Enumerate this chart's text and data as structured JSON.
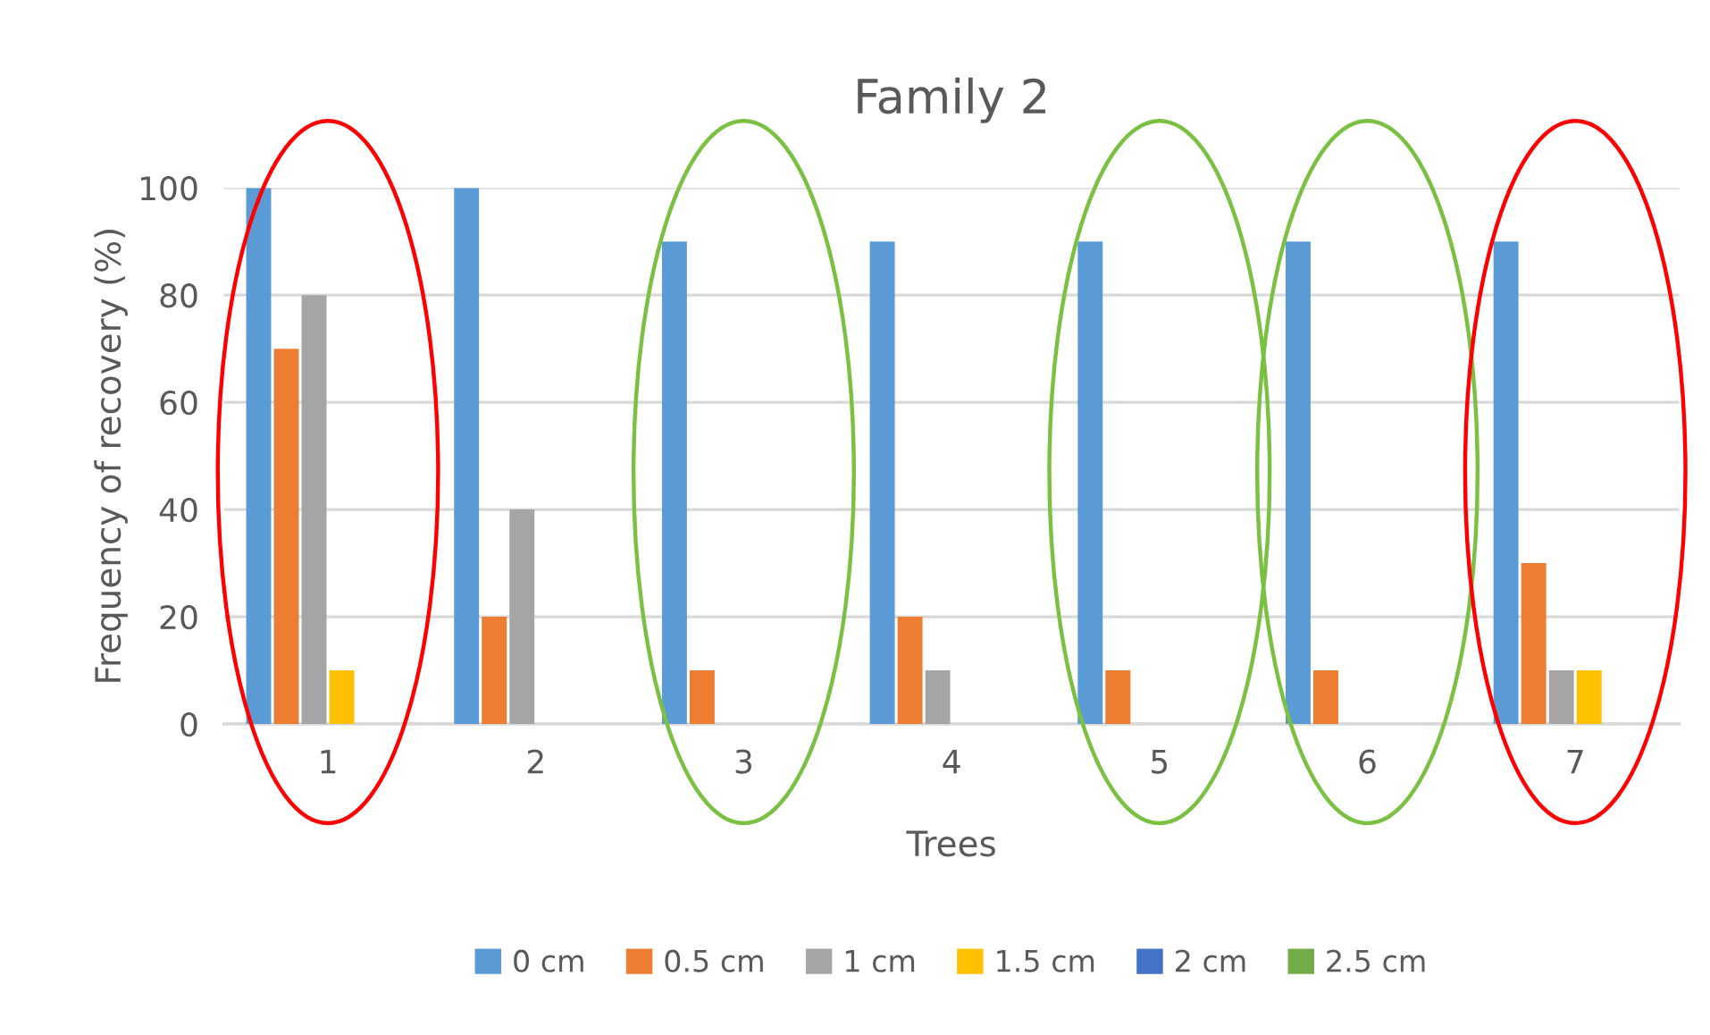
{
  "chart_data": {
    "type": "bar",
    "title": "Family 2",
    "xlabel": "Trees",
    "ylabel": "Frequency of recovery (%)",
    "categories": [
      "1",
      "2",
      "3",
      "4",
      "5",
      "6",
      "7"
    ],
    "series": [
      {
        "name": "0 cm",
        "color": "#5b9bd5",
        "values": [
          100,
          100,
          90,
          90,
          90,
          90,
          90
        ]
      },
      {
        "name": "0.5 cm",
        "color": "#ed7d31",
        "values": [
          70,
          20,
          10,
          20,
          10,
          10,
          30
        ]
      },
      {
        "name": "1 cm",
        "color": "#a5a5a5",
        "values": [
          80,
          40,
          0,
          10,
          0,
          0,
          10
        ]
      },
      {
        "name": "1.5 cm",
        "color": "#ffc000",
        "values": [
          10,
          0,
          0,
          0,
          0,
          0,
          10
        ]
      },
      {
        "name": "2 cm",
        "color": "#4472c4",
        "values": [
          0,
          0,
          0,
          0,
          0,
          0,
          0
        ]
      },
      {
        "name": "2.5 cm",
        "color": "#70ad47",
        "values": [
          0,
          0,
          0,
          0,
          0,
          0,
          0
        ]
      }
    ],
    "ylim": [
      0,
      100
    ],
    "yticks": [
      0,
      20,
      40,
      60,
      80,
      100
    ],
    "grid": "y",
    "legend": "bottom"
  }
}
